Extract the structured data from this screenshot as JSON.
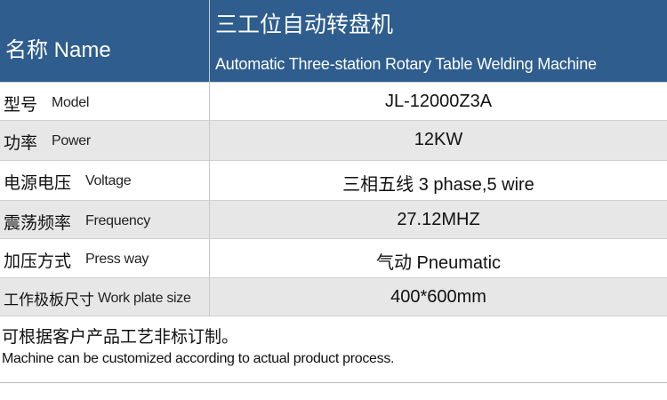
{
  "header": {
    "label_cn": "名称",
    "label_en": "Name",
    "title_cn": "三工位自动转盘机",
    "title_en": "Automatic Three-station Rotary Table Welding Machine"
  },
  "table": {
    "rows": [
      [
        "型号",
        "Model",
        "JL-12000Z3A"
      ],
      [
        "功率",
        "Power",
        "12KW"
      ],
      [
        "电源电压",
        "Voltage",
        "三相五线  3 phase,5 wire"
      ],
      [
        "震荡频率",
        "Frequency",
        "27.12MHZ"
      ],
      [
        "加压方式",
        "Press way",
        "气动 Pneumatic"
      ],
      [
        "工作极板尺寸",
        "Work plate size",
        "400*600mm"
      ]
    ]
  },
  "footer": {
    "note_cn": "可根据客户产品工艺非标订制。",
    "note_en": "Machine can be customized according to actual product process."
  }
}
